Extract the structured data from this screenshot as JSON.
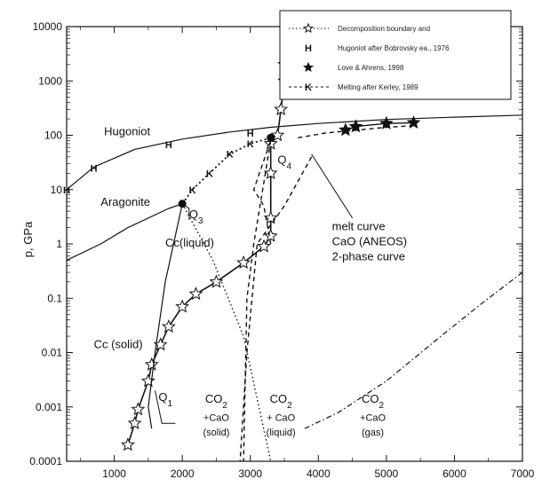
{
  "chart_data": {
    "type": "line",
    "title": "",
    "xlabel": "",
    "ylabel": "p, GPa",
    "xlim": [
      300,
      7000
    ],
    "ylim": [
      0.0001,
      10000
    ],
    "yscale": "log",
    "x_ticks": [
      "1000",
      "2000",
      "3000",
      "4000",
      "5000",
      "6000",
      "7000"
    ],
    "y_ticks": [
      "0.0001",
      "0.001",
      "0.01",
      "0.1",
      "1",
      "10",
      "100",
      "1000",
      "10000"
    ],
    "legend": {
      "placement": "top-right",
      "entries": [
        "Decomposition boundary and",
        "Hugoniot after Bobrovsky ea., 1976",
        "Love & Ahrens, 1998",
        "Melting after Kerley, 1989"
      ]
    },
    "series": [
      {
        "style": "solid",
        "points": [
          [
            300,
            10
          ],
          [
            700,
            26
          ],
          [
            1300,
            55
          ],
          [
            2000,
            85
          ],
          [
            2700,
            115
          ],
          [
            3300,
            140
          ],
          [
            4000,
            165
          ],
          [
            5000,
            195
          ],
          [
            6000,
            215
          ],
          [
            7000,
            235
          ]
        ]
      },
      {
        "style": "hugoniot-H",
        "points": [
          [
            300,
            10
          ],
          [
            700,
            25
          ],
          [
            1800,
            68
          ],
          [
            3000,
            110
          ]
        ]
      },
      {
        "style": "star-solid",
        "points": [
          [
            1200,
            0.0002
          ],
          [
            1300,
            0.0005
          ],
          [
            1350,
            0.0009
          ],
          [
            1500,
            0.003
          ],
          [
            1550,
            0.006
          ],
          [
            1680,
            0.014
          ],
          [
            1800,
            0.03
          ],
          [
            2000,
            0.07
          ],
          [
            2200,
            0.12
          ],
          [
            2500,
            0.2
          ],
          [
            2900,
            0.45
          ],
          [
            3200,
            0.9
          ],
          [
            3300,
            1.4
          ],
          [
            3300,
            3
          ],
          [
            3300,
            20
          ],
          [
            3300,
            70
          ],
          [
            3400,
            100
          ],
          [
            3450,
            300
          ],
          [
            3500,
            1000
          ],
          [
            3500,
            2000
          ]
        ]
      },
      {
        "style": "star-dot-solid",
        "points": [
          [
            4400,
            125
          ],
          [
            4550,
            145
          ],
          [
            5000,
            165
          ],
          [
            5400,
            170
          ]
        ]
      },
      {
        "style": "melting-K-dotted",
        "points": [
          [
            2000,
            5.5
          ],
          [
            2150,
            10
          ],
          [
            2400,
            20
          ],
          [
            2700,
            45
          ],
          [
            3000,
            70
          ],
          [
            3300,
            90
          ]
        ]
      },
      {
        "style": "dashed",
        "points": [
          [
            3300,
            1
          ],
          [
            3200,
            5
          ],
          [
            3050,
            10
          ],
          [
            3300,
            80
          ]
        ]
      },
      {
        "style": "dotted",
        "points": [
          [
            2000,
            5.5
          ],
          [
            2450,
            0.5
          ],
          [
            2900,
            0.02
          ],
          [
            3300,
            0.0001
          ]
        ]
      },
      {
        "style": "solid",
        "points": [
          [
            300,
            0.5
          ],
          [
            800,
            1
          ],
          [
            1200,
            2
          ],
          [
            1800,
            4.5
          ],
          [
            2000,
            5.5
          ]
        ]
      },
      {
        "style": "solid",
        "points": [
          [
            2000,
            5.5
          ],
          [
            1750,
            0.2
          ],
          [
            1600,
            0.01
          ],
          [
            1500,
            0.001
          ],
          [
            1550,
            0.0004
          ]
        ]
      },
      {
        "style": "dashed",
        "points": [
          [
            3300,
            80
          ],
          [
            3050,
            1
          ],
          [
            2950,
            0.1
          ],
          [
            2900,
            0.0001
          ]
        ]
      },
      {
        "style": "dashed",
        "points": [
          [
            3900,
            40
          ],
          [
            3500,
            5
          ],
          [
            3100,
            1
          ],
          [
            2950,
            0.01
          ],
          [
            2850,
            0.0001
          ]
        ]
      },
      {
        "style": "dash-dot",
        "points": [
          [
            3800,
            0.0004
          ],
          [
            4300,
            0.0008
          ],
          [
            5000,
            0.003
          ],
          [
            5800,
            0.02
          ],
          [
            6400,
            0.08
          ],
          [
            7000,
            0.3
          ]
        ]
      },
      {
        "style": "dashed",
        "points": [
          [
            3700,
            90
          ],
          [
            4100,
            110
          ],
          [
            5000,
            140
          ],
          [
            5400,
            150
          ]
        ]
      }
    ],
    "annotations": [
      {
        "text": "Hugoniot",
        "x": 850,
        "y": 100
      },
      {
        "text": "Aragonite",
        "x": 800,
        "y": 5
      },
      {
        "text": "Q",
        "sub": "3",
        "x": 2100,
        "y": 3
      },
      {
        "text": "Q",
        "sub": "4",
        "x": 3400,
        "y": 30
      },
      {
        "text": "Cc(liquid)",
        "x": 1750,
        "y": 0.9
      },
      {
        "text": "Cc (solid)",
        "x": 700,
        "y": 0.012
      },
      {
        "text": "Q",
        "sub": "1",
        "x": 1650,
        "y": 0.0013
      },
      {
        "text": "melt curve",
        "x": 4200,
        "y": 1.8
      },
      {
        "text": "CaO (ANEOS)",
        "x": 4200,
        "y": 0.95
      },
      {
        "text": "2-phase curve",
        "x": 4200,
        "y": 0.5
      }
    ],
    "phase_labels": [
      {
        "line1": "CO",
        "sub": "2",
        "line2": "+CaO",
        "line3": "(solid)",
        "x": 2500
      },
      {
        "line1": "CO",
        "sub": "2",
        "line2": "+ CaO",
        "line3": "(liquid)",
        "x": 3450
      },
      {
        "line1": "CO",
        "sub": "2",
        "line2": "+CaO",
        "line3": "(gas)",
        "x": 4800
      }
    ]
  }
}
